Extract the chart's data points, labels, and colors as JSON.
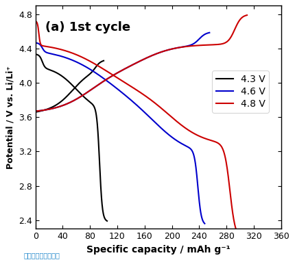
{
  "title": "(a) 1st cycle",
  "xlabel": "Specific capacity / mAh g⁻¹",
  "ylabel": "Potential / V vs. Li/Li⁺",
  "xlim": [
    0,
    360
  ],
  "ylim": [
    2.3,
    4.9
  ],
  "xticks": [
    0,
    40,
    80,
    120,
    160,
    200,
    240,
    280,
    320,
    360
  ],
  "yticks": [
    2.4,
    2.8,
    3.2,
    3.6,
    4.0,
    4.4,
    4.8
  ],
  "legend_labels": [
    "4.3 V",
    "4.6 V",
    "4.8 V"
  ],
  "colors": [
    "#000000",
    "#0000cc",
    "#cc0000"
  ],
  "linewidth": 1.5,
  "background": "#dff0f8",
  "border_top_color": "#5bc8f5",
  "annotation": "图片来源见参考文献"
}
